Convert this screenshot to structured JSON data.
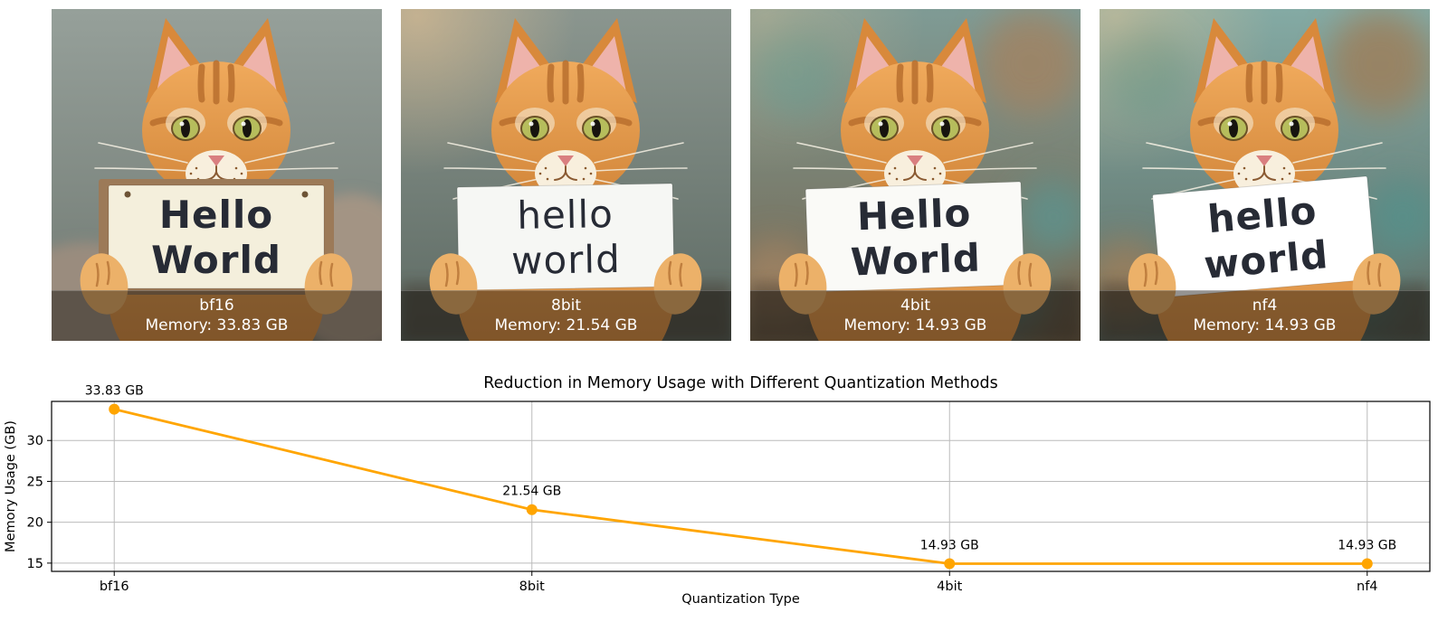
{
  "figure": {
    "background": "#ffffff"
  },
  "panels": [
    {
      "label": "bf16",
      "memory": "Memory: 33.83 GB",
      "sign_line1": "Hello",
      "sign_line2": "World",
      "theme": {
        "--bg1": "#96a09a",
        "--bg2": "#6f7871",
        "--fluff-op": "1",
        "--frame-op": "1",
        "--paper": "#f4efdc",
        "--sign-rot": "0deg",
        "--floor-op": "0.2",
        "--bokeh-op": "0",
        "--glow-op": "0",
        "--sign-weight": "700"
      }
    },
    {
      "label": "8bit",
      "memory": "Memory: 21.54 GB",
      "sign_line1": "hello",
      "sign_line2": "world",
      "theme": {
        "--bg1": "#8b968f",
        "--bg2": "#5d6a63",
        "--fluff-op": "0",
        "--frame-op": "0",
        "--paper": "#f6f7f4",
        "--sign-rot": "-1deg",
        "--floor-op": "0.45",
        "--bokeh-op": "0",
        "--glow-op": "0.55",
        "--sign-weight": "400"
      }
    },
    {
      "label": "4bit",
      "memory": "Memory: 14.93 GB",
      "sign_line1": "Hello",
      "sign_line2": "World",
      "theme": {
        "--bg1": "#7f9b95",
        "--bg2": "#75664f",
        "--fluff-op": "0",
        "--frame-op": "0",
        "--paper": "#fafaf7",
        "--sign-rot": "-2deg",
        "--floor-op": "0.4",
        "--bokeh-op": "0.85",
        "--bok1": "#5f928c",
        "--bok2": "#a08363",
        "--glow-op": "0.3",
        "--sign-weight": "700"
      }
    },
    {
      "label": "nf4",
      "memory": "Memory: 14.93 GB",
      "sign_line1": "hello",
      "sign_line2": "world",
      "theme": {
        "--bg1": "#84aaa4",
        "--bg2": "#5e6e66",
        "--fluff-op": "0",
        "--frame-op": "0",
        "--paper": "#ffffff",
        "--sign-rot": "-5deg",
        "--floor-op": "0.45",
        "--bokeh-op": "0.85",
        "--bok1": "#57908a",
        "--bok2": "#9c7f5c",
        "--glow-op": "0.45",
        "--sign-weight": "700"
      }
    }
  ],
  "chart_data": {
    "type": "line",
    "categories": [
      "bf16",
      "8bit",
      "4bit",
      "nf4"
    ],
    "values": [
      33.83,
      21.54,
      14.93,
      14.93
    ],
    "annotations": [
      "33.83 GB",
      "21.54 GB",
      "14.93 GB",
      "14.93 GB"
    ],
    "title": "Reduction in Memory Usage with Different Quantization Methods",
    "xlabel": "Quantization Type",
    "ylabel": "Memory Usage (GB)",
    "yticks": [
      15,
      20,
      25,
      30
    ],
    "ylim": [
      13.99,
      34.78
    ],
    "line_color": "#FFA500",
    "marker": "o",
    "marker_radius": 6,
    "grid": true,
    "grid_color": "#bbbbbb",
    "axis_color": "#000000",
    "legend_position": "none"
  }
}
